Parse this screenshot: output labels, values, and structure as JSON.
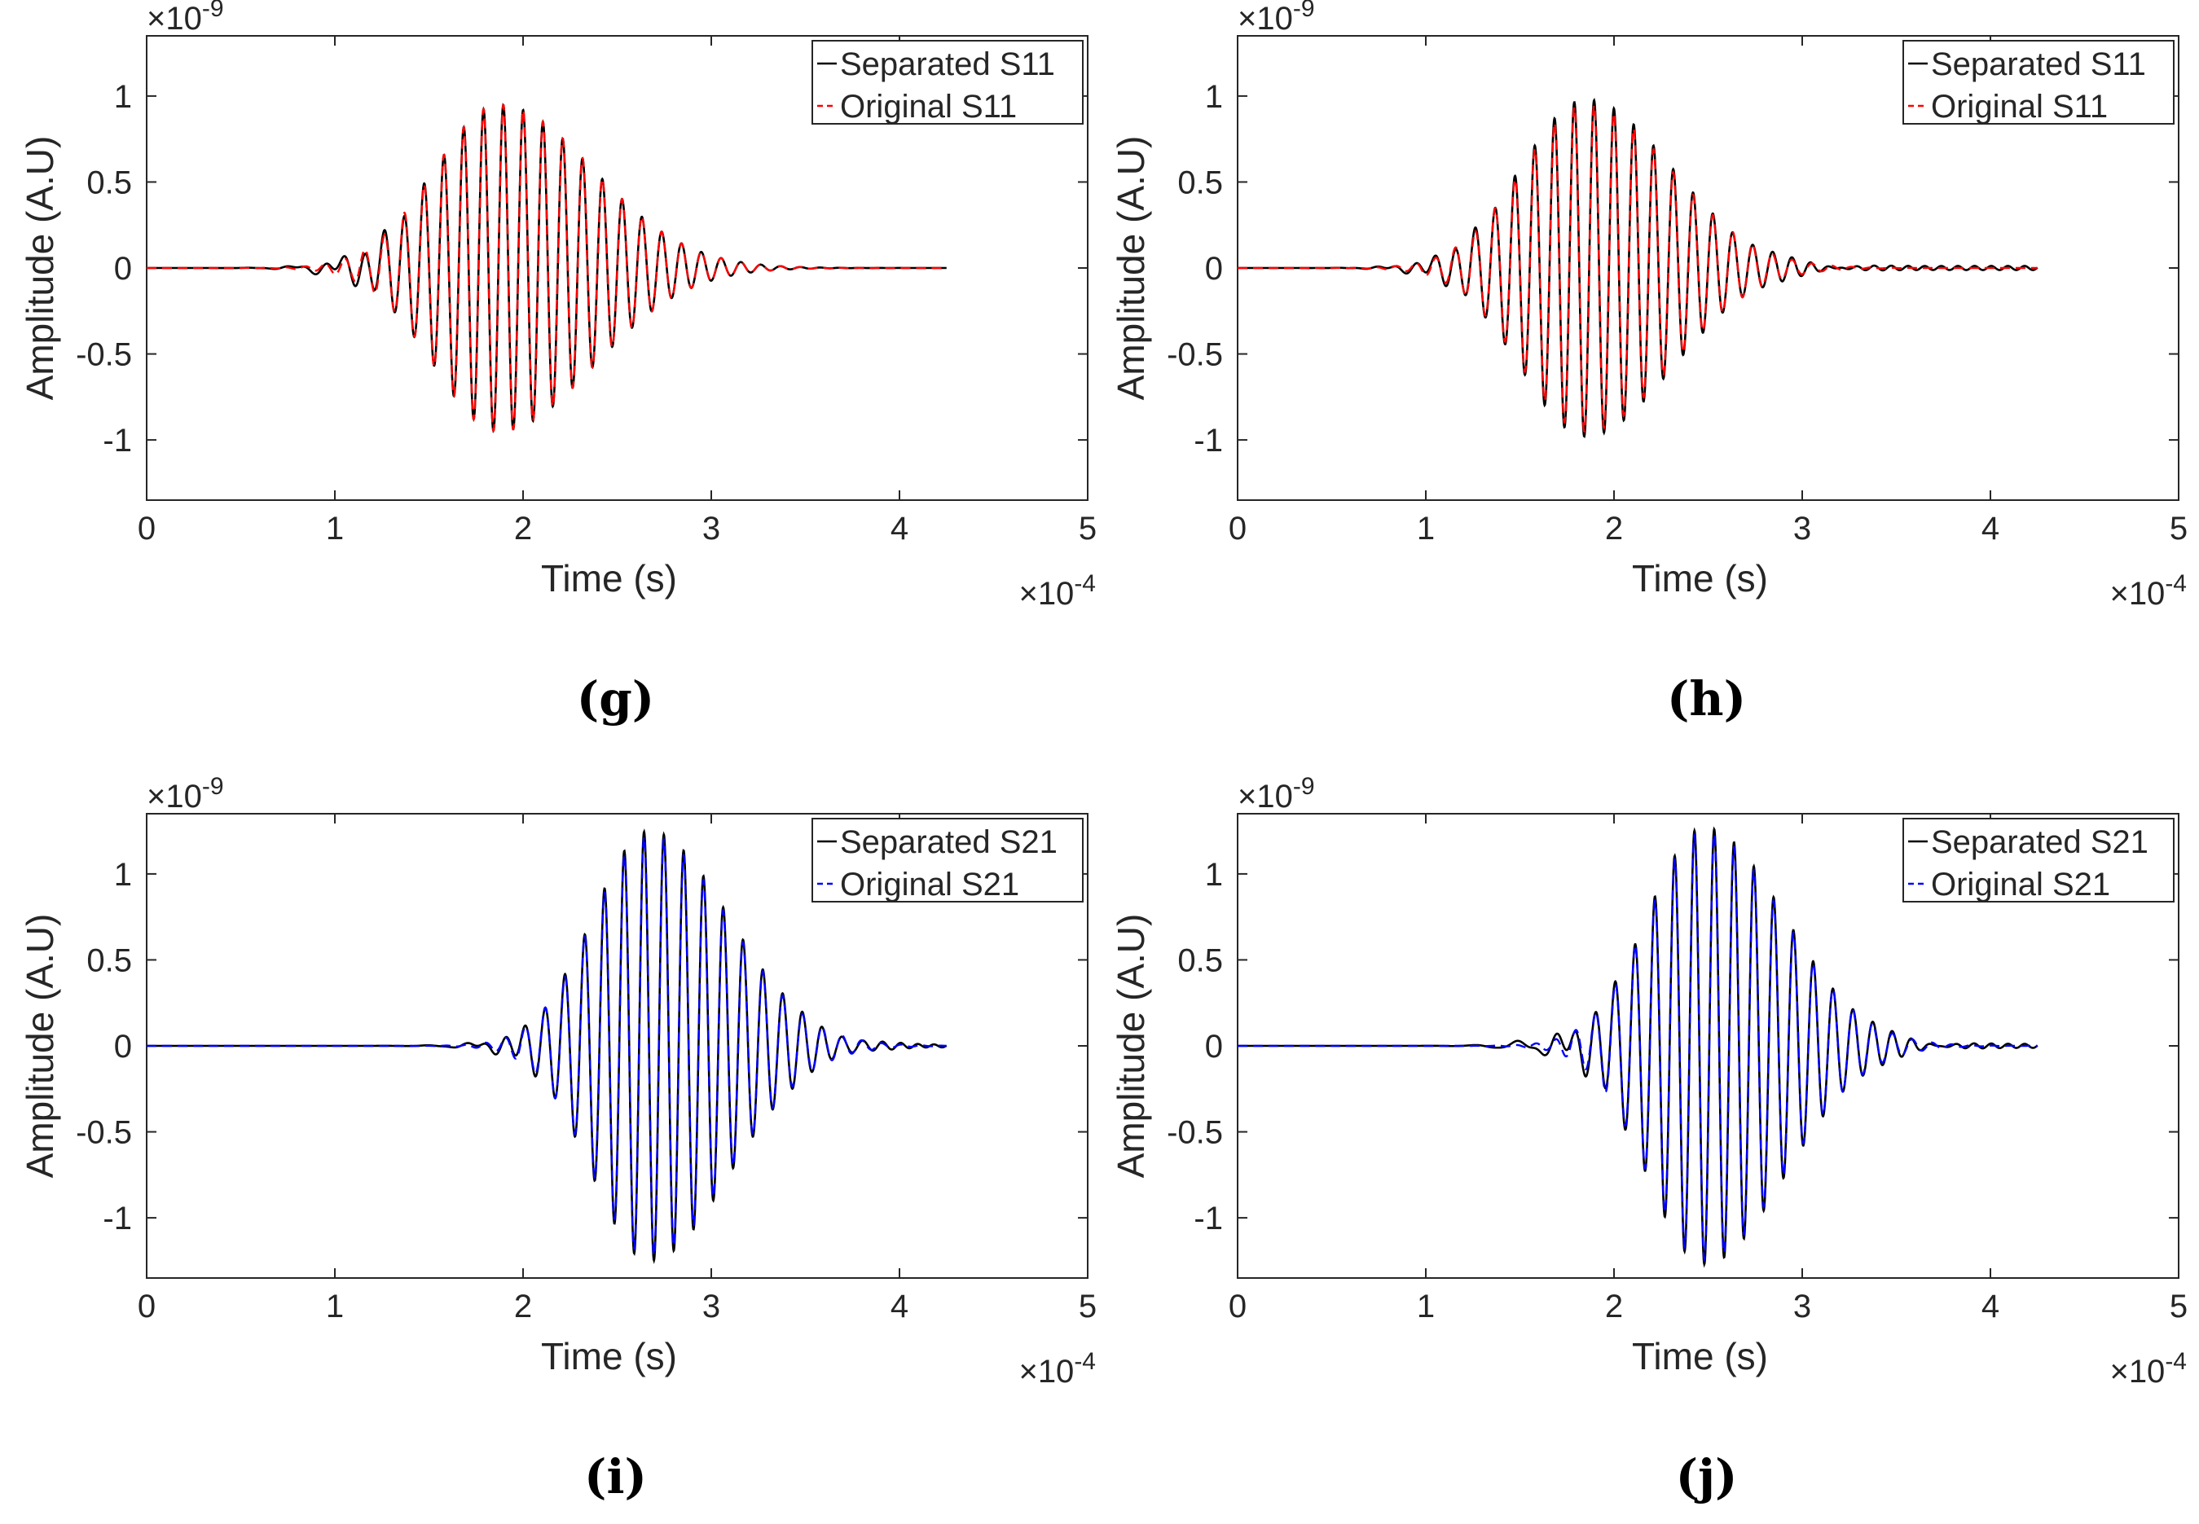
{
  "chart_data": [
    {
      "type": "line",
      "panel_label": "(g)",
      "xlabel": "Time (s)",
      "ylabel": "Amplitude (A.U)",
      "x_exponent_label": "×10",
      "x_exponent": "-4",
      "y_exponent_label": "×10",
      "y_exponent": "-9",
      "xlim": [
        0,
        5
      ],
      "ylim": [
        -1.35,
        1.35
      ],
      "xticks": [
        0,
        1,
        2,
        3,
        4,
        5
      ],
      "xtick_labels": [
        "0",
        "1",
        "2",
        "3",
        "4",
        "5"
      ],
      "yticks": [
        -1,
        -0.5,
        0,
        0.5,
        1
      ],
      "ytick_labels": [
        "-1",
        "-0.5",
        "0",
        "0.5",
        "1"
      ],
      "legend_position": "top-right",
      "grid": false,
      "series": [
        {
          "name": "Separated S11",
          "color": "#000000",
          "style": "solid",
          "t_end": 4.25,
          "f_main": 9.5,
          "env_center": 1.87,
          "env_attack": 0.34,
          "env_decay": 0.5,
          "amp": 0.95,
          "phase": 1.55,
          "ripple": 0.0,
          "pre_wiggle": 0.035
        },
        {
          "name": "Original S11",
          "color": "#ff0000",
          "style": "dashed",
          "t_end": 4.25,
          "f_main": 9.5,
          "env_center": 1.87,
          "env_attack": 0.34,
          "env_decay": 0.5,
          "amp": 0.95,
          "phase": 1.55,
          "ripple": 0.0,
          "pre_wiggle": 0.0
        }
      ]
    },
    {
      "type": "line",
      "panel_label": "(h)",
      "xlabel": "Time (s)",
      "ylabel": "Amplitude (A.U)",
      "x_exponent_label": "×10",
      "x_exponent": "-4",
      "y_exponent_label": "×10",
      "y_exponent": "-9",
      "xlim": [
        0,
        5
      ],
      "ylim": [
        -1.35,
        1.35
      ],
      "xticks": [
        0,
        1,
        2,
        3,
        4,
        5
      ],
      "xtick_labels": [
        "0",
        "1",
        "2",
        "3",
        "4",
        "5"
      ],
      "yticks": [
        -1,
        -0.5,
        0,
        0.5,
        1
      ],
      "ytick_labels": [
        "-1",
        "-0.5",
        "0",
        "0.5",
        "1"
      ],
      "legend_position": "top-right",
      "grid": false,
      "series": [
        {
          "name": "Separated S11",
          "color": "#000000",
          "style": "solid",
          "t_end": 4.25,
          "f_main": 9.5,
          "env_center": 1.85,
          "env_attack": 0.34,
          "env_decay": 0.45,
          "amp": 0.98,
          "phase": 1.6,
          "ripple": 0.012,
          "pre_wiggle": 0.02
        },
        {
          "name": "Original S11",
          "color": "#ff0000",
          "style": "dashed",
          "t_end": 4.25,
          "f_main": 9.5,
          "env_center": 1.85,
          "env_attack": 0.34,
          "env_decay": 0.45,
          "amp": 0.95,
          "phase": 1.6,
          "ripple": 0.0,
          "pre_wiggle": 0.0
        }
      ]
    },
    {
      "type": "line",
      "panel_label": "(i)",
      "xlabel": "Time (s)",
      "ylabel": "Amplitude (A.U)",
      "x_exponent_label": "×10",
      "x_exponent": "-4",
      "y_exponent_label": "×10",
      "y_exponent": "-9",
      "xlim": [
        0,
        5
      ],
      "ylim": [
        -1.35,
        1.35
      ],
      "xticks": [
        0,
        1,
        2,
        3,
        4,
        5
      ],
      "xtick_labels": [
        "0",
        "1",
        "2",
        "3",
        "4",
        "5"
      ],
      "yticks": [
        -1,
        -0.5,
        0,
        0.5,
        1
      ],
      "ytick_labels": [
        "-1",
        "-0.5",
        "0",
        "0.5",
        "1"
      ],
      "legend_position": "top-right",
      "grid": false,
      "series": [
        {
          "name": "Separated S21",
          "color": "#000000",
          "style": "solid",
          "t_end": 4.25,
          "f_main": 9.5,
          "env_center": 2.67,
          "env_attack": 0.3,
          "env_decay": 0.42,
          "amp": 1.25,
          "phase": 0.9,
          "ripple": 0.01,
          "pre_wiggle": 0.02
        },
        {
          "name": "Original S21",
          "color": "#0000ff",
          "style": "dashed",
          "t_end": 4.25,
          "f_main": 9.5,
          "env_center": 2.67,
          "env_attack": 0.3,
          "env_decay": 0.42,
          "amp": 1.22,
          "phase": 0.9,
          "ripple": 0.0,
          "pre_wiggle": 0.0
        }
      ]
    },
    {
      "type": "line",
      "panel_label": "(j)",
      "xlabel": "Time (s)",
      "ylabel": "Amplitude (A.U)",
      "x_exponent_label": "×10",
      "x_exponent": "-4",
      "y_exponent_label": "×10",
      "y_exponent": "-9",
      "xlim": [
        0,
        5
      ],
      "ylim": [
        -1.35,
        1.35
      ],
      "xticks": [
        0,
        1,
        2,
        3,
        4,
        5
      ],
      "xtick_labels": [
        "0",
        "1",
        "2",
        "3",
        "4",
        "5"
      ],
      "yticks": [
        -1,
        -0.5,
        0,
        0.5,
        1
      ],
      "ytick_labels": [
        "-1",
        "-0.5",
        "0",
        "0.5",
        "1"
      ],
      "legend_position": "top-right",
      "grid": false,
      "series": [
        {
          "name": "Separated S21",
          "color": "#000000",
          "style": "solid",
          "t_end": 4.25,
          "f_main": 9.5,
          "env_center": 2.48,
          "env_attack": 0.3,
          "env_decay": 0.42,
          "amp": 1.27,
          "phase": 1.2,
          "ripple": 0.012,
          "pre_wiggle": 0.045
        },
        {
          "name": "Original S21",
          "color": "#0000ff",
          "style": "dashed",
          "t_end": 4.25,
          "f_main": 9.5,
          "env_center": 2.48,
          "env_attack": 0.3,
          "env_decay": 0.42,
          "amp": 1.24,
          "phase": 1.2,
          "ripple": 0.0,
          "pre_wiggle": 0.0
        }
      ]
    }
  ]
}
